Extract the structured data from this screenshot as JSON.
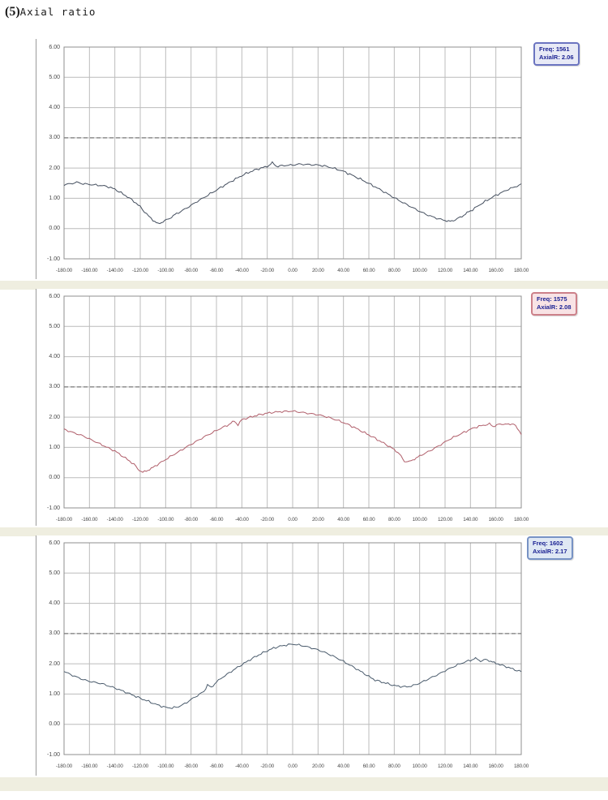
{
  "page": {
    "title_prefix": "(5)",
    "title_text": "Axial ratio"
  },
  "chart_data": [
    {
      "type": "line",
      "name": "axial-ratio-freq-1561",
      "legend": {
        "line1": "Freq: 1561",
        "line2": "AxialR: 2.06"
      },
      "legend_colors": {
        "border": "#6b74c0",
        "fill": "#e8eaf6",
        "text": "#1b2293"
      },
      "curve_color": "#444e5e",
      "xlabel": "",
      "ylabel": "",
      "xlim": [
        -180,
        180
      ],
      "ylim": [
        -1,
        6
      ],
      "grid": true,
      "reference_line_y": 3.0,
      "x_tick_labels": [
        "-180.00",
        "-160.00",
        "-140.00",
        "-120.00",
        "-100.00",
        "-80.00",
        "-60.00",
        "-40.00",
        "-20.00",
        "0.00",
        "20.00",
        "40.00",
        "60.00",
        "80.00",
        "100.00",
        "120.00",
        "140.00",
        "160.00",
        "180.00"
      ],
      "y_tick_labels": [
        "6.00",
        "5.00",
        "4.00",
        "3.00",
        "2.00",
        "1.00",
        "0.00",
        "-1.00"
      ],
      "points": [
        [
          -180,
          1.45
        ],
        [
          -175,
          1.48
        ],
        [
          -170,
          1.53
        ],
        [
          -165,
          1.48
        ],
        [
          -160,
          1.46
        ],
        [
          -155,
          1.44
        ],
        [
          -150,
          1.42
        ],
        [
          -145,
          1.38
        ],
        [
          -140,
          1.3
        ],
        [
          -135,
          1.18
        ],
        [
          -130,
          1.05
        ],
        [
          -125,
          0.9
        ],
        [
          -120,
          0.72
        ],
        [
          -115,
          0.48
        ],
        [
          -110,
          0.28
        ],
        [
          -106,
          0.16
        ],
        [
          -102,
          0.22
        ],
        [
          -98,
          0.32
        ],
        [
          -94,
          0.42
        ],
        [
          -90,
          0.52
        ],
        [
          -85,
          0.64
        ],
        [
          -80,
          0.77
        ],
        [
          -75,
          0.9
        ],
        [
          -70,
          1.02
        ],
        [
          -65,
          1.15
        ],
        [
          -60,
          1.27
        ],
        [
          -55,
          1.4
        ],
        [
          -50,
          1.52
        ],
        [
          -45,
          1.64
        ],
        [
          -40,
          1.75
        ],
        [
          -35,
          1.85
        ],
        [
          -30,
          1.93
        ],
        [
          -25,
          2.0
        ],
        [
          -20,
          2.05
        ],
        [
          -16,
          2.18
        ],
        [
          -13,
          2.06
        ],
        [
          -10,
          2.07
        ],
        [
          -5,
          2.09
        ],
        [
          0,
          2.1
        ],
        [
          5,
          2.13
        ],
        [
          10,
          2.12
        ],
        [
          15,
          2.11
        ],
        [
          20,
          2.1
        ],
        [
          25,
          2.07
        ],
        [
          30,
          2.02
        ],
        [
          35,
          1.96
        ],
        [
          40,
          1.89
        ],
        [
          45,
          1.8
        ],
        [
          50,
          1.7
        ],
        [
          55,
          1.6
        ],
        [
          60,
          1.49
        ],
        [
          65,
          1.38
        ],
        [
          70,
          1.26
        ],
        [
          75,
          1.14
        ],
        [
          80,
          1.02
        ],
        [
          85,
          0.9
        ],
        [
          90,
          0.79
        ],
        [
          95,
          0.68
        ],
        [
          100,
          0.57
        ],
        [
          105,
          0.47
        ],
        [
          110,
          0.39
        ],
        [
          115,
          0.32
        ],
        [
          120,
          0.27
        ],
        [
          124,
          0.24
        ],
        [
          128,
          0.28
        ],
        [
          132,
          0.38
        ],
        [
          136,
          0.48
        ],
        [
          140,
          0.58
        ],
        [
          145,
          0.72
        ],
        [
          150,
          0.86
        ],
        [
          155,
          0.98
        ],
        [
          160,
          1.1
        ],
        [
          165,
          1.2
        ],
        [
          170,
          1.3
        ],
        [
          175,
          1.38
        ],
        [
          180,
          1.46
        ]
      ]
    },
    {
      "type": "line",
      "name": "axial-ratio-freq-1575",
      "legend": {
        "line1": "Freq: 1575",
        "line2": "AxialR: 2.08"
      },
      "legend_colors": {
        "border": "#cc8089",
        "fill": "#f8e3e5",
        "text": "#1b2293"
      },
      "curve_color": "#b05e6a",
      "xlabel": "",
      "ylabel": "",
      "xlim": [
        -180,
        180
      ],
      "ylim": [
        -1,
        6
      ],
      "grid": true,
      "reference_line_y": 3.0,
      "x_tick_labels": [
        "-180.00",
        "-160.00",
        "-140.00",
        "-120.00",
        "-100.00",
        "-80.00",
        "-60.00",
        "-40.00",
        "-20.00",
        "0.00",
        "20.00",
        "40.00",
        "60.00",
        "80.00",
        "100.00",
        "120.00",
        "140.00",
        "160.00",
        "180.00"
      ],
      "y_tick_labels": [
        "6.00",
        "5.00",
        "4.00",
        "3.00",
        "2.00",
        "1.00",
        "0.00",
        "-1.00"
      ],
      "points": [
        [
          -180,
          1.6
        ],
        [
          -175,
          1.52
        ],
        [
          -170,
          1.45
        ],
        [
          -165,
          1.38
        ],
        [
          -160,
          1.28
        ],
        [
          -155,
          1.18
        ],
        [
          -150,
          1.08
        ],
        [
          -145,
          0.98
        ],
        [
          -140,
          0.88
        ],
        [
          -135,
          0.74
        ],
        [
          -130,
          0.6
        ],
        [
          -125,
          0.44
        ],
        [
          -122,
          0.3
        ],
        [
          -118,
          0.17
        ],
        [
          -114,
          0.24
        ],
        [
          -110,
          0.34
        ],
        [
          -105,
          0.47
        ],
        [
          -100,
          0.6
        ],
        [
          -95,
          0.73
        ],
        [
          -90,
          0.85
        ],
        [
          -85,
          0.98
        ],
        [
          -80,
          1.1
        ],
        [
          -75,
          1.22
        ],
        [
          -70,
          1.34
        ],
        [
          -65,
          1.45
        ],
        [
          -60,
          1.56
        ],
        [
          -55,
          1.66
        ],
        [
          -50,
          1.76
        ],
        [
          -46,
          1.88
        ],
        [
          -43,
          1.74
        ],
        [
          -40,
          1.92
        ],
        [
          -35,
          1.98
        ],
        [
          -30,
          2.04
        ],
        [
          -25,
          2.09
        ],
        [
          -20,
          2.13
        ],
        [
          -15,
          2.16
        ],
        [
          -10,
          2.18
        ],
        [
          -5,
          2.19
        ],
        [
          0,
          2.2
        ],
        [
          5,
          2.17
        ],
        [
          10,
          2.14
        ],
        [
          15,
          2.11
        ],
        [
          20,
          2.08
        ],
        [
          25,
          2.03
        ],
        [
          30,
          1.97
        ],
        [
          35,
          1.9
        ],
        [
          40,
          1.82
        ],
        [
          45,
          1.73
        ],
        [
          50,
          1.63
        ],
        [
          55,
          1.52
        ],
        [
          60,
          1.41
        ],
        [
          65,
          1.3
        ],
        [
          70,
          1.18
        ],
        [
          75,
          1.06
        ],
        [
          80,
          0.93
        ],
        [
          84,
          0.78
        ],
        [
          88,
          0.55
        ],
        [
          92,
          0.52
        ],
        [
          96,
          0.62
        ],
        [
          100,
          0.72
        ],
        [
          105,
          0.82
        ],
        [
          110,
          0.93
        ],
        [
          115,
          1.05
        ],
        [
          120,
          1.18
        ],
        [
          125,
          1.3
        ],
        [
          130,
          1.4
        ],
        [
          135,
          1.5
        ],
        [
          140,
          1.6
        ],
        [
          145,
          1.68
        ],
        [
          150,
          1.73
        ],
        [
          155,
          1.77
        ],
        [
          158,
          1.7
        ],
        [
          162,
          1.75
        ],
        [
          166,
          1.78
        ],
        [
          170,
          1.76
        ],
        [
          174,
          1.78
        ],
        [
          177,
          1.62
        ],
        [
          180,
          1.45
        ]
      ]
    },
    {
      "type": "line",
      "name": "axial-ratio-freq-1602",
      "legend": {
        "line1": "Freq: 1602",
        "line2": "AxialR: 2.17"
      },
      "legend_colors": {
        "border": "#7792c4",
        "fill": "#dfe8f4",
        "text": "#1b2293"
      },
      "curve_color": "#4a5b6c",
      "xlabel": "",
      "ylabel": "",
      "xlim": [
        -180,
        180
      ],
      "ylim": [
        -1,
        6
      ],
      "grid": true,
      "reference_line_y": 3.0,
      "x_tick_labels": [
        "-180.00",
        "-160.00",
        "-140.00",
        "-120.00",
        "-100.00",
        "-80.00",
        "-60.00",
        "-40.00",
        "-20.00",
        "0.00",
        "20.00",
        "40.00",
        "60.00",
        "80.00",
        "100.00",
        "120.00",
        "140.00",
        "160.00",
        "180.00"
      ],
      "y_tick_labels": [
        "6.00",
        "5.00",
        "4.00",
        "3.00",
        "2.00",
        "1.00",
        "0.00",
        "-1.00"
      ],
      "points": [
        [
          -180,
          1.75
        ],
        [
          -175,
          1.65
        ],
        [
          -170,
          1.56
        ],
        [
          -165,
          1.48
        ],
        [
          -160,
          1.42
        ],
        [
          -155,
          1.38
        ],
        [
          -150,
          1.34
        ],
        [
          -145,
          1.27
        ],
        [
          -140,
          1.2
        ],
        [
          -135,
          1.12
        ],
        [
          -130,
          1.04
        ],
        [
          -125,
          0.95
        ],
        [
          -120,
          0.86
        ],
        [
          -115,
          0.78
        ],
        [
          -110,
          0.7
        ],
        [
          -105,
          0.62
        ],
        [
          -100,
          0.56
        ],
        [
          -95,
          0.54
        ],
        [
          -90,
          0.58
        ],
        [
          -85,
          0.68
        ],
        [
          -80,
          0.82
        ],
        [
          -75,
          0.95
        ],
        [
          -70,
          1.08
        ],
        [
          -67,
          1.3
        ],
        [
          -64,
          1.22
        ],
        [
          -60,
          1.4
        ],
        [
          -55,
          1.56
        ],
        [
          -50,
          1.7
        ],
        [
          -45,
          1.84
        ],
        [
          -40,
          1.97
        ],
        [
          -35,
          2.1
        ],
        [
          -30,
          2.22
        ],
        [
          -25,
          2.33
        ],
        [
          -20,
          2.43
        ],
        [
          -15,
          2.52
        ],
        [
          -10,
          2.58
        ],
        [
          -5,
          2.62
        ],
        [
          0,
          2.65
        ],
        [
          5,
          2.62
        ],
        [
          10,
          2.58
        ],
        [
          15,
          2.52
        ],
        [
          20,
          2.46
        ],
        [
          25,
          2.38
        ],
        [
          30,
          2.29
        ],
        [
          35,
          2.19
        ],
        [
          40,
          2.08
        ],
        [
          45,
          1.96
        ],
        [
          50,
          1.84
        ],
        [
          55,
          1.71
        ],
        [
          60,
          1.58
        ],
        [
          65,
          1.46
        ],
        [
          70,
          1.4
        ],
        [
          75,
          1.34
        ],
        [
          80,
          1.28
        ],
        [
          85,
          1.25
        ],
        [
          90,
          1.24
        ],
        [
          95,
          1.28
        ],
        [
          100,
          1.36
        ],
        [
          105,
          1.46
        ],
        [
          110,
          1.56
        ],
        [
          115,
          1.66
        ],
        [
          120,
          1.77
        ],
        [
          125,
          1.87
        ],
        [
          130,
          1.97
        ],
        [
          135,
          2.05
        ],
        [
          140,
          2.12
        ],
        [
          144,
          2.17
        ],
        [
          148,
          2.1
        ],
        [
          152,
          2.14
        ],
        [
          156,
          2.08
        ],
        [
          160,
          2.02
        ],
        [
          165,
          1.95
        ],
        [
          170,
          1.88
        ],
        [
          175,
          1.8
        ],
        [
          180,
          1.74
        ]
      ]
    }
  ],
  "style": {
    "grid_color": "#bcbcbc",
    "frame_color": "#8f8f8f",
    "reference_line_color": "#7a7a7a",
    "strip_color": "#efeee0"
  }
}
